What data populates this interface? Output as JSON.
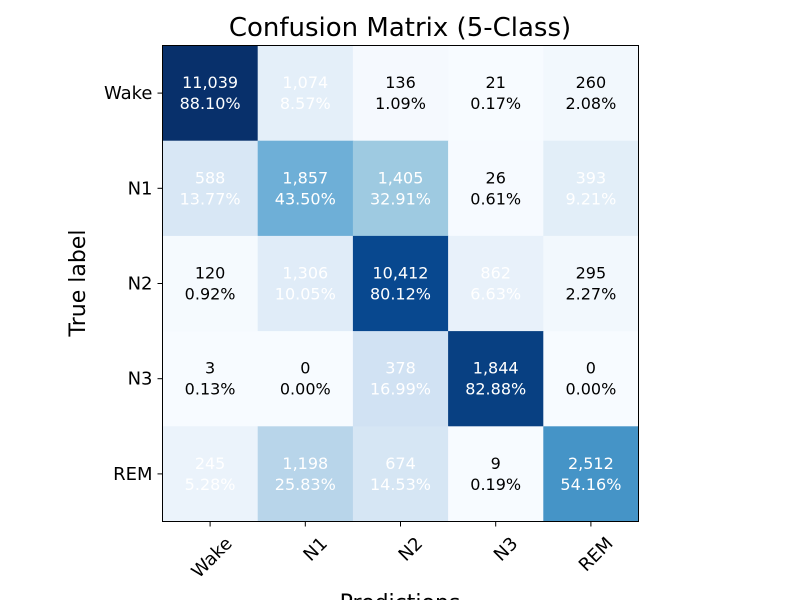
{
  "chart_data": {
    "type": "heatmap",
    "title": "Confusion Matrix (5-Class)",
    "xlabel": "Predictions",
    "ylabel": "True label",
    "x_categories": [
      "Wake",
      "N1",
      "N2",
      "N3",
      "REM"
    ],
    "y_categories": [
      "Wake",
      "N1",
      "N2",
      "N3",
      "REM"
    ],
    "counts": [
      [
        11039,
        1074,
        136,
        21,
        260
      ],
      [
        588,
        1857,
        1405,
        26,
        393
      ],
      [
        120,
        1306,
        10412,
        862,
        295
      ],
      [
        3,
        0,
        378,
        1844,
        0
      ],
      [
        245,
        1198,
        674,
        9,
        2512
      ]
    ],
    "percentages": [
      [
        88.1,
        8.57,
        1.09,
        0.17,
        2.08
      ],
      [
        13.77,
        43.5,
        32.91,
        0.61,
        9.21
      ],
      [
        0.92,
        10.05,
        80.12,
        6.63,
        2.27
      ],
      [
        0.13,
        0.0,
        16.99,
        82.88,
        0.0
      ],
      [
        5.28,
        25.83,
        14.53,
        0.19,
        54.16
      ]
    ],
    "count_labels": [
      [
        "11,039",
        "1,074",
        "136",
        "21",
        "260"
      ],
      [
        "588",
        "1,857",
        "1,405",
        "26",
        "393"
      ],
      [
        "120",
        "1,306",
        "10,412",
        "862",
        "295"
      ],
      [
        "3",
        "0",
        "378",
        "1,844",
        "0"
      ],
      [
        "245",
        "1,198",
        "674",
        "9",
        "2,512"
      ]
    ],
    "percent_labels": [
      [
        "88.10%",
        "8.57%",
        "1.09%",
        "0.17%",
        "2.08%"
      ],
      [
        "13.77%",
        "43.50%",
        "32.91%",
        "0.61%",
        "9.21%"
      ],
      [
        "0.92%",
        "10.05%",
        "80.12%",
        "6.63%",
        "2.27%"
      ],
      [
        "0.13%",
        "0.00%",
        "16.99%",
        "82.88%",
        "0.00%"
      ],
      [
        "5.28%",
        "25.83%",
        "14.53%",
        "0.19%",
        "54.16%"
      ]
    ],
    "colormap": "Blues",
    "color_scale_max_percent": 88.1,
    "text_color_threshold_percent": 4,
    "colors": {
      "light_text": "#ffffff",
      "dark_text": "#000000",
      "axes_frame": "#000000"
    }
  }
}
